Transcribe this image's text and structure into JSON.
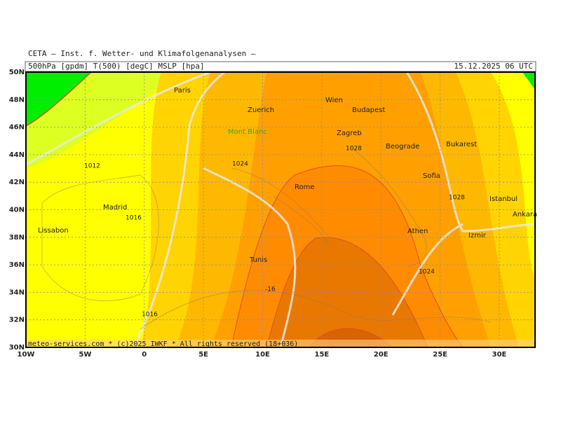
{
  "header": {
    "institute": "CETA – Inst. f. Wetter- und Klimafolgenanalysen –",
    "fields": "500hPa [gpdm] T(500) [degC] MSLP [hpa]",
    "valid_time": "15.12.2025 06 UTC"
  },
  "map": {
    "lat_ticks": [
      {
        "value": 50,
        "label": "50N"
      },
      {
        "value": 48,
        "label": "48N"
      },
      {
        "value": 46,
        "label": "46N"
      },
      {
        "value": 44,
        "label": "44N"
      },
      {
        "value": 42,
        "label": "42N"
      },
      {
        "value": 40,
        "label": "40N"
      },
      {
        "value": 38,
        "label": "38N"
      },
      {
        "value": 36,
        "label": "36N"
      },
      {
        "value": 34,
        "label": "34N"
      },
      {
        "value": 32,
        "label": "32N"
      },
      {
        "value": 30,
        "label": "30N"
      }
    ],
    "lon_ticks": [
      {
        "value": -10,
        "label": "10W"
      },
      {
        "value": -5,
        "label": "5W"
      },
      0,
      {
        "value": 5,
        "label": "5E"
      },
      {
        "value": 10,
        "label": "10E"
      },
      {
        "value": 15,
        "label": "15E"
      },
      {
        "value": 20,
        "label": "20E"
      },
      {
        "value": 25,
        "label": "25E"
      },
      {
        "value": 30,
        "label": "30E"
      }
    ],
    "cities": [
      "Paris",
      "Zuerich",
      "Mont Blanc",
      "Wien",
      "Budapest",
      "Zagreb",
      "Beograde",
      "Bukarest",
      "Rome",
      "Sofia",
      "Istanbul",
      "Ankara",
      "Madrid",
      "Lissabon",
      "Athen",
      "Izmir",
      "Tunis"
    ],
    "isobar_labels": [
      "1012",
      "1016",
      "1024",
      "1028",
      "1028",
      "1024",
      "1016",
      "-16"
    ]
  },
  "footer": "meteo-services.com * (c)2025 IWKF * All rights reserved (18+036)"
}
